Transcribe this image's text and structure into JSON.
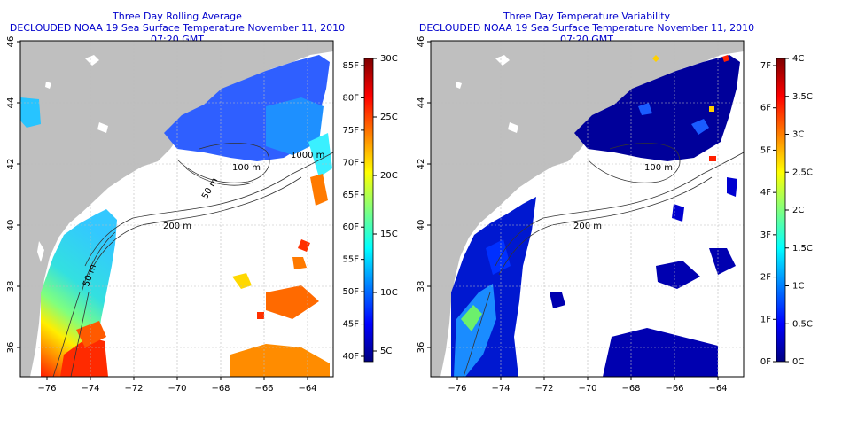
{
  "left_panel": {
    "title_line1": "Three Day Rolling Average",
    "title_line2": "DECLOUDED NOAA 19 Sea Surface Temperature November 11, 2010 07:20 GMT",
    "colorbar_f": [
      "40F",
      "45F",
      "50F",
      "55F",
      "60F",
      "65F",
      "70F",
      "75F",
      "80F",
      "85F"
    ],
    "colorbar_c": [
      "5C",
      "10C",
      "15C",
      "20C",
      "25C",
      "30C"
    ],
    "colorbar_colors": [
      "#00007f",
      "#0000ff",
      "#007fff",
      "#00ffff",
      "#7fff7f",
      "#ffff00",
      "#ff7f00",
      "#ff0000",
      "#7f0000"
    ]
  },
  "right_panel": {
    "title_line1": "Three Day Temperature Variability",
    "title_line2": "DECLOUDED NOAA 19 Sea Surface Temperature November 11, 2010 07:20 GMT",
    "colorbar_f": [
      "0F",
      "1F",
      "2F",
      "3F",
      "4F",
      "5F",
      "6F",
      "7F"
    ],
    "colorbar_c": [
      "0C",
      "0.5C",
      "1C",
      "1.5C",
      "2C",
      "2.5C",
      "3C",
      "3.5C",
      "4C"
    ],
    "colorbar_colors": [
      "#00007f",
      "#0000ff",
      "#007fff",
      "#00ffff",
      "#7fff7f",
      "#ffff00",
      "#ff7f00",
      "#ff0000",
      "#7f0000"
    ]
  },
  "axes": {
    "x_ticks": [
      "−76",
      "−74",
      "−72",
      "−70",
      "−68",
      "−66",
      "−64"
    ],
    "y_ticks": [
      "36",
      "38",
      "40",
      "42",
      "44",
      "46"
    ]
  },
  "contour_labels": [
    "200 m",
    "100 m",
    "50 m",
    "1000 m",
    "200 m",
    "100 m",
    "50 m"
  ],
  "colors": {
    "land": "#bfbfbf",
    "title": "#0000cc",
    "grid": "#bbbbbb"
  }
}
